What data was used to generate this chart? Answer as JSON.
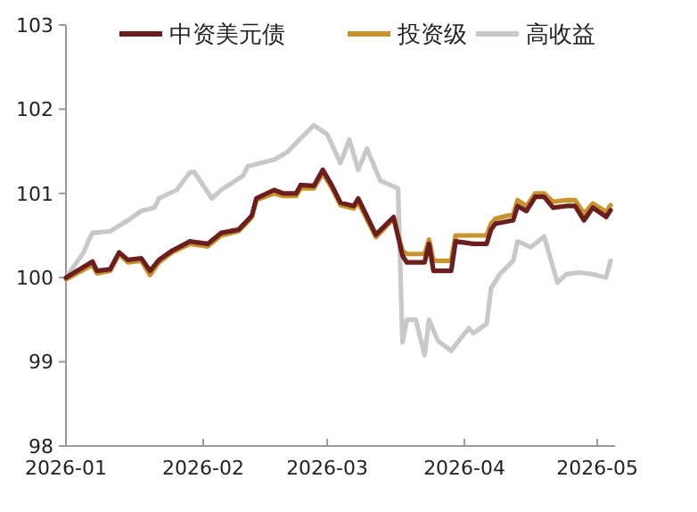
{
  "chart_data": {
    "type": "line",
    "x": [
      "2026-01-01",
      "2026-01-07",
      "2026-01-08",
      "2026-01-11",
      "2026-01-13",
      "2026-01-15",
      "2026-01-18",
      "2026-01-20",
      "2026-01-22",
      "2026-01-25",
      "2026-01-29",
      "2026-02-02",
      "2026-02-05",
      "2026-02-09",
      "2026-02-11",
      "2026-02-12",
      "2026-02-13",
      "2026-02-17",
      "2026-02-19",
      "2026-02-22",
      "2026-02-23",
      "2026-02-26",
      "2026-02-28",
      "2026-03-02",
      "2026-03-04",
      "2026-03-07",
      "2026-03-08",
      "2026-03-12",
      "2026-03-16",
      "2026-03-18",
      "2026-03-19",
      "2026-03-23",
      "2026-03-24",
      "2026-03-25",
      "2026-03-29",
      "2026-03-30",
      "2026-04-03",
      "2026-04-06",
      "2026-04-07",
      "2026-04-08",
      "2026-04-12",
      "2026-04-13",
      "2026-04-15",
      "2026-04-17",
      "2026-04-19",
      "2026-04-21",
      "2026-04-24",
      "2026-04-26",
      "2026-04-28",
      "2026-04-30",
      "2026-05-03",
      "2026-05-04"
    ],
    "series": [
      {
        "name": "中资美元债",
        "color": "#6b1e1e",
        "values": [
          100.0,
          100.19,
          100.08,
          100.1,
          100.3,
          100.21,
          100.23,
          100.08,
          100.21,
          100.32,
          100.43,
          100.4,
          100.53,
          100.57,
          100.68,
          100.74,
          100.94,
          101.04,
          101.0,
          101.0,
          101.1,
          101.09,
          101.28,
          101.1,
          100.89,
          100.85,
          100.94,
          100.51,
          100.72,
          100.26,
          100.18,
          100.18,
          100.4,
          100.08,
          100.08,
          100.43,
          100.4,
          100.4,
          100.57,
          100.64,
          100.68,
          100.85,
          100.79,
          100.96,
          100.96,
          100.83,
          100.85,
          100.85,
          100.68,
          100.83,
          100.72,
          100.8
        ]
      },
      {
        "name": "投资级",
        "color": "#c8922e",
        "values": [
          99.98,
          100.15,
          100.05,
          100.08,
          100.28,
          100.18,
          100.2,
          100.03,
          100.18,
          100.3,
          100.4,
          100.37,
          100.5,
          100.55,
          100.66,
          100.72,
          100.92,
          101.0,
          100.97,
          100.97,
          101.06,
          101.06,
          101.24,
          101.07,
          100.86,
          100.82,
          100.9,
          100.48,
          100.7,
          100.32,
          100.28,
          100.28,
          100.45,
          100.2,
          100.2,
          100.5,
          100.5,
          100.5,
          100.64,
          100.7,
          100.75,
          100.92,
          100.85,
          101.0,
          101.0,
          100.9,
          100.92,
          100.92,
          100.76,
          100.88,
          100.78,
          100.86
        ]
      },
      {
        "name": "高收益",
        "color": "#c8c8c8",
        "x": [
          "2026-01-01",
          "2026-01-05",
          "2026-01-06",
          "2026-01-07",
          "2026-01-11",
          "2026-01-15",
          "2026-01-18",
          "2026-01-21",
          "2026-01-22",
          "2026-01-26",
          "2026-01-29",
          "2026-01-30",
          "2026-02-03",
          "2026-02-05",
          "2026-02-10",
          "2026-02-11",
          "2026-02-17",
          "2026-02-20",
          "2026-02-22",
          "2026-02-26",
          "2026-03-01",
          "2026-03-04",
          "2026-03-06",
          "2026-03-08",
          "2026-03-10",
          "2026-03-13",
          "2026-03-17",
          "2026-03-18",
          "2026-03-19",
          "2026-03-21",
          "2026-03-23",
          "2026-03-24",
          "2026-03-26",
          "2026-03-29",
          "2026-03-30",
          "2026-04-02",
          "2026-04-03",
          "2026-04-06",
          "2026-04-07",
          "2026-04-09",
          "2026-04-12",
          "2026-04-13",
          "2026-04-16",
          "2026-04-19",
          "2026-04-22",
          "2026-04-24",
          "2026-04-27",
          "2026-04-30",
          "2026-05-03",
          "2026-05-04"
        ],
        "values": [
          100.0,
          100.3,
          100.43,
          100.53,
          100.55,
          100.68,
          100.79,
          100.83,
          100.94,
          101.04,
          101.25,
          101.25,
          100.94,
          101.04,
          101.21,
          101.32,
          101.4,
          101.49,
          101.6,
          101.81,
          101.7,
          101.36,
          101.64,
          101.28,
          101.53,
          101.15,
          101.06,
          99.23,
          99.5,
          99.5,
          99.08,
          99.5,
          99.25,
          99.13,
          99.2,
          99.4,
          99.34,
          99.45,
          99.87,
          100.04,
          100.2,
          100.43,
          100.36,
          100.49,
          99.94,
          100.04,
          100.06,
          100.04,
          100.0,
          100.2
        ]
      }
    ],
    "xlim": [
      "2026-01-01",
      "2026-05-05"
    ],
    "xticks": [
      {
        "value": "2026-01-01",
        "label": "2026-01"
      },
      {
        "value": "2026-02-01",
        "label": "2026-02"
      },
      {
        "value": "2026-03-01",
        "label": "2026-03"
      },
      {
        "value": "2026-04-01",
        "label": "2026-04"
      },
      {
        "value": "2026-05-01",
        "label": "2026-05"
      }
    ],
    "ylim": [
      98,
      103
    ],
    "yticks": [
      98,
      99,
      100,
      101,
      102,
      103
    ],
    "legend": "top",
    "grid": false,
    "line_style": "solid",
    "marker": "none"
  }
}
